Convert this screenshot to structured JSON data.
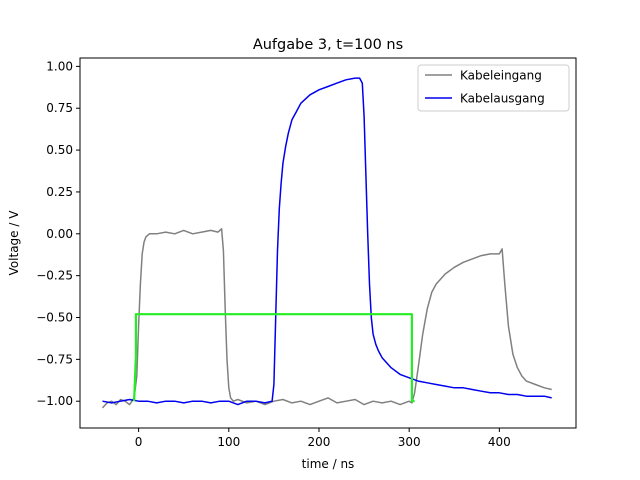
{
  "chart_data": {
    "type": "line",
    "title": "Aufgabe 3,  t=100 ns",
    "xlabel": "time / ns",
    "ylabel": "Voltage / V",
    "xlim": [
      -65,
      485
    ],
    "ylim": [
      -1.16,
      1.05
    ],
    "xticks": [
      0,
      100,
      200,
      300,
      400
    ],
    "yticks": [
      -1.0,
      -0.75,
      -0.5,
      -0.25,
      0.0,
      0.25,
      0.5,
      0.75,
      1.0
    ],
    "ytick_labels": [
      "−1.00",
      "−0.75",
      "−0.50",
      "−0.25",
      "0.00",
      "0.25",
      "0.50",
      "0.75",
      "1.00"
    ],
    "grid": false,
    "legend_position": "top-right",
    "series": [
      {
        "name": "Kabeleingang",
        "color": "#808080",
        "in_legend": true,
        "x": [
          -40,
          -35,
          -30,
          -25,
          -20,
          -15,
          -10,
          -5,
          -2,
          0,
          2,
          4,
          6,
          8,
          12,
          20,
          30,
          40,
          50,
          60,
          70,
          80,
          88,
          92,
          94,
          96,
          98,
          100,
          102,
          105,
          110,
          120,
          130,
          140,
          150,
          160,
          170,
          180,
          190,
          200,
          210,
          220,
          230,
          240,
          250,
          260,
          270,
          280,
          290,
          300,
          303,
          306,
          310,
          315,
          320,
          325,
          330,
          340,
          350,
          360,
          370,
          380,
          390,
          400,
          403,
          406,
          410,
          415,
          420,
          425,
          430,
          440,
          450,
          458
        ],
        "y": [
          -1.04,
          -1.01,
          -1.0,
          -1.02,
          -0.99,
          -1.0,
          -1.02,
          -0.98,
          -0.85,
          -0.55,
          -0.3,
          -0.12,
          -0.05,
          -0.02,
          0.0,
          0.0,
          0.01,
          0.0,
          0.02,
          0.0,
          0.01,
          0.02,
          0.01,
          0.03,
          -0.1,
          -0.45,
          -0.75,
          -0.92,
          -0.98,
          -1.0,
          -0.99,
          -1.01,
          -1.0,
          -1.02,
          -1.0,
          -0.99,
          -1.01,
          -1.0,
          -1.02,
          -1.0,
          -0.98,
          -1.01,
          -1.0,
          -0.99,
          -1.02,
          -1.0,
          -1.01,
          -1.0,
          -1.02,
          -1.0,
          -1.01,
          -0.95,
          -0.8,
          -0.6,
          -0.45,
          -0.35,
          -0.3,
          -0.24,
          -0.2,
          -0.17,
          -0.15,
          -0.13,
          -0.12,
          -0.12,
          -0.09,
          -0.3,
          -0.55,
          -0.72,
          -0.8,
          -0.85,
          -0.88,
          -0.9,
          -0.92,
          -0.93
        ]
      },
      {
        "name": "Kabelausgang",
        "color": "#0000ee",
        "in_legend": true,
        "x": [
          -40,
          -30,
          -20,
          -10,
          0,
          10,
          20,
          30,
          40,
          50,
          60,
          70,
          80,
          90,
          100,
          110,
          120,
          130,
          140,
          148,
          150,
          152,
          154,
          156,
          158,
          160,
          163,
          166,
          170,
          175,
          180,
          190,
          200,
          210,
          220,
          230,
          240,
          245,
          248,
          250,
          252,
          254,
          256,
          258,
          260,
          263,
          266,
          270,
          275,
          280,
          290,
          300,
          310,
          320,
          330,
          340,
          350,
          360,
          370,
          380,
          390,
          400,
          410,
          420,
          430,
          440,
          450,
          458
        ],
        "y": [
          -1.0,
          -1.01,
          -1.0,
          -0.99,
          -1.0,
          -1.0,
          -1.01,
          -1.0,
          -1.0,
          -1.01,
          -1.0,
          -1.0,
          -1.01,
          -1.0,
          -1.0,
          -1.02,
          -1.0,
          -1.0,
          -1.01,
          -1.0,
          -0.9,
          -0.5,
          -0.1,
          0.15,
          0.3,
          0.42,
          0.52,
          0.6,
          0.68,
          0.73,
          0.78,
          0.83,
          0.86,
          0.88,
          0.9,
          0.92,
          0.93,
          0.93,
          0.9,
          0.7,
          0.35,
          0.0,
          -0.3,
          -0.5,
          -0.6,
          -0.66,
          -0.7,
          -0.74,
          -0.77,
          -0.8,
          -0.84,
          -0.86,
          -0.88,
          -0.89,
          -0.9,
          -0.91,
          -0.92,
          -0.92,
          -0.93,
          -0.94,
          -0.95,
          -0.95,
          -0.96,
          -0.96,
          -0.97,
          -0.97,
          -0.97,
          -0.98
        ]
      },
      {
        "name": "",
        "color": "#22ee22",
        "in_legend": false,
        "x": [
          -5,
          -3,
          -3,
          303,
          303,
          306
        ],
        "y": [
          -1.0,
          -0.73,
          -0.48,
          -0.48,
          -1.0,
          -1.0
        ]
      }
    ]
  }
}
